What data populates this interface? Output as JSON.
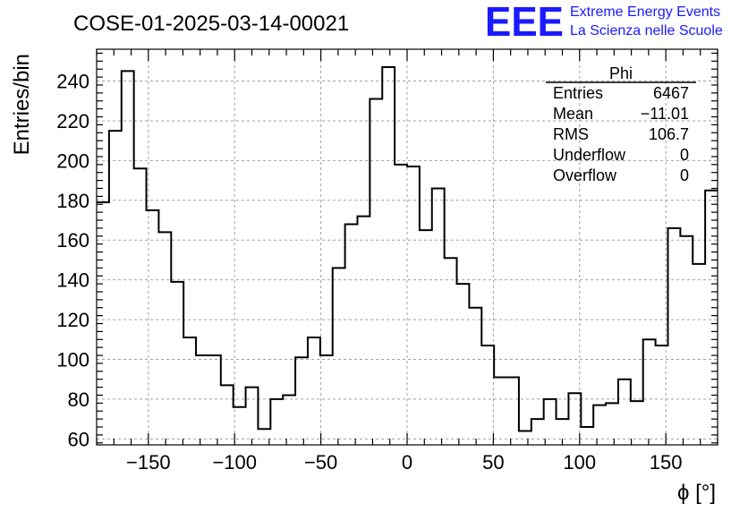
{
  "chart_data": {
    "type": "histogram",
    "title": "COSE-01-2025-03-14-00021",
    "xlabel": "ϕ [°]",
    "ylabel": "Entries/bin",
    "xlim": [
      -180,
      180
    ],
    "ylim": [
      57,
      256
    ],
    "bin_width": 7.2,
    "x_ticks": [
      -150,
      -100,
      -50,
      0,
      50,
      100,
      150
    ],
    "x_tick_labels": [
      "−150",
      "−100",
      "−50",
      "0",
      "50",
      "100",
      "150"
    ],
    "y_ticks": [
      60,
      80,
      100,
      120,
      140,
      160,
      180,
      200,
      220,
      240
    ],
    "grid": true,
    "bin_low_edges": [
      -180,
      -172.8,
      -165.6,
      -158.4,
      -151.2,
      -144,
      -136.8,
      -129.6,
      -122.4,
      -115.2,
      -108,
      -100.8,
      -93.6,
      -86.4,
      -79.2,
      -72,
      -64.8,
      -57.6,
      -50.4,
      -43.2,
      -36,
      -28.8,
      -21.6,
      -14.4,
      -7.2,
      0,
      7.2,
      14.4,
      21.6,
      28.8,
      36,
      43.2,
      50.4,
      57.6,
      64.8,
      72,
      79.2,
      86.4,
      93.6,
      100.8,
      108,
      115.2,
      122.4,
      129.6,
      136.8,
      144,
      151.2,
      158.4,
      165.6,
      172.8
    ],
    "values": [
      179,
      215,
      245,
      196,
      175,
      164,
      139,
      111,
      102,
      102,
      87,
      76,
      86,
      65,
      80,
      82,
      101,
      111,
      102,
      146,
      168,
      172,
      231,
      247,
      198,
      197,
      165,
      186,
      151,
      138,
      126,
      107,
      91,
      91,
      64,
      70,
      80,
      70,
      83,
      66,
      77,
      78,
      90,
      79,
      110,
      107,
      166,
      162,
      148,
      185
    ],
    "stats": {
      "name": "Phi",
      "rows": [
        {
          "label": "Entries",
          "value": "6467"
        },
        {
          "label": "Mean",
          "value": "−11.01"
        },
        {
          "label": "RMS",
          "value": "106.7"
        },
        {
          "label": "Underflow",
          "value": "0"
        },
        {
          "label": "Overflow",
          "value": "0"
        }
      ]
    }
  },
  "logo": {
    "mark": "EEE",
    "line1": "Extreme Energy Events",
    "line2": "La Scienza nelle Scuole"
  }
}
